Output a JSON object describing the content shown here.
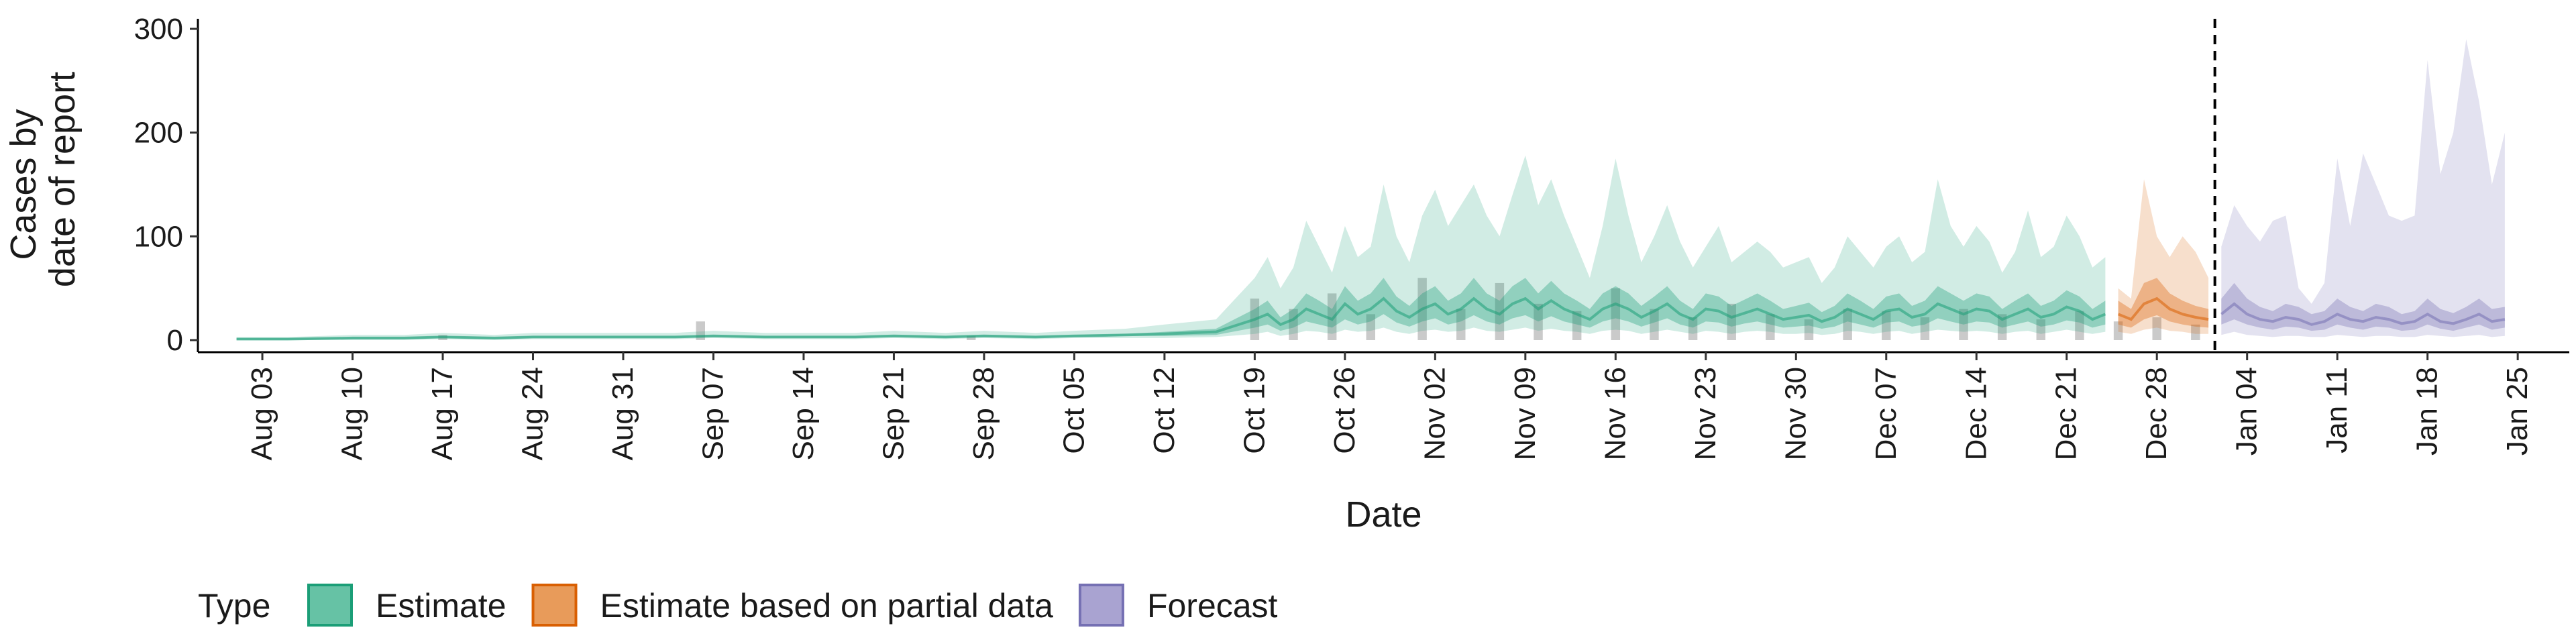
{
  "chart_data": {
    "type": "area",
    "title": "",
    "xlabel": "Date",
    "ylabel": [
      "Cases by",
      "date of report"
    ],
    "ylim": [
      0,
      310
    ],
    "xlim": [
      "2020-07-29",
      "2021-01-29"
    ],
    "y_ticks": [
      0,
      100,
      200,
      300
    ],
    "x_ticks": [
      {
        "date": "2020-08-03",
        "label": "Aug 03"
      },
      {
        "date": "2020-08-10",
        "label": "Aug 10"
      },
      {
        "date": "2020-08-17",
        "label": "Aug 17"
      },
      {
        "date": "2020-08-24",
        "label": "Aug 24"
      },
      {
        "date": "2020-08-31",
        "label": "Aug 31"
      },
      {
        "date": "2020-09-07",
        "label": "Sep 07"
      },
      {
        "date": "2020-09-14",
        "label": "Sep 14"
      },
      {
        "date": "2020-09-21",
        "label": "Sep 21"
      },
      {
        "date": "2020-09-28",
        "label": "Sep 28"
      },
      {
        "date": "2020-10-05",
        "label": "Oct 05"
      },
      {
        "date": "2020-10-12",
        "label": "Oct 12"
      },
      {
        "date": "2020-10-19",
        "label": "Oct 19"
      },
      {
        "date": "2020-10-26",
        "label": "Oct 26"
      },
      {
        "date": "2020-11-02",
        "label": "Nov 02"
      },
      {
        "date": "2020-11-09",
        "label": "Nov 09"
      },
      {
        "date": "2020-11-16",
        "label": "Nov 16"
      },
      {
        "date": "2020-11-23",
        "label": "Nov 23"
      },
      {
        "date": "2020-11-30",
        "label": "Nov 30"
      },
      {
        "date": "2020-12-07",
        "label": "Dec 07"
      },
      {
        "date": "2020-12-14",
        "label": "Dec 14"
      },
      {
        "date": "2020-12-21",
        "label": "Dec 21"
      },
      {
        "date": "2020-12-28",
        "label": "Dec 28"
      },
      {
        "date": "2021-01-04",
        "label": "Jan 04"
      },
      {
        "date": "2021-01-11",
        "label": "Jan 11"
      },
      {
        "date": "2021-01-18",
        "label": "Jan 18"
      },
      {
        "date": "2021-01-25",
        "label": "Jan 25"
      }
    ],
    "forecast_start": "2021-01-01",
    "grid": false,
    "legend": {
      "position": "bottom-left",
      "title": "Type",
      "entries": [
        {
          "label": "Estimate",
          "fill": "#66C2A5",
          "stroke": "#1B9E77"
        },
        {
          "label": "Estimate based on partial data",
          "fill": "#E89B5A",
          "stroke": "#D95F02"
        },
        {
          "label": "Forecast",
          "fill": "#A9A3D1",
          "stroke": "#7570B3"
        }
      ]
    },
    "colors": {
      "Estimate": "#1B9E77",
      "Estimate based on partial data": "#D95F02",
      "Forecast": "#7570B3",
      "reported_cases": "#9E9E9E"
    },
    "series": [
      {
        "name": "Estimate",
        "dates": [
          "2020-08-01",
          "2020-08-05",
          "2020-08-10",
          "2020-08-14",
          "2020-08-17",
          "2020-08-21",
          "2020-08-24",
          "2020-08-28",
          "2020-08-31",
          "2020-09-04",
          "2020-09-07",
          "2020-09-11",
          "2020-09-14",
          "2020-09-18",
          "2020-09-21",
          "2020-09-25",
          "2020-09-28",
          "2020-10-02",
          "2020-10-05",
          "2020-10-09",
          "2020-10-12",
          "2020-10-16",
          "2020-10-19",
          "2020-10-20",
          "2020-10-21",
          "2020-10-22",
          "2020-10-23",
          "2020-10-24",
          "2020-10-25",
          "2020-10-26",
          "2020-10-27",
          "2020-10-28",
          "2020-10-29",
          "2020-10-30",
          "2020-10-31",
          "2020-11-01",
          "2020-11-02",
          "2020-11-03",
          "2020-11-04",
          "2020-11-05",
          "2020-11-06",
          "2020-11-07",
          "2020-11-08",
          "2020-11-09",
          "2020-11-10",
          "2020-11-11",
          "2020-11-12",
          "2020-11-13",
          "2020-11-14",
          "2020-11-15",
          "2020-11-16",
          "2020-11-17",
          "2020-11-18",
          "2020-11-19",
          "2020-11-20",
          "2020-11-21",
          "2020-11-22",
          "2020-11-23",
          "2020-11-24",
          "2020-11-25",
          "2020-11-26",
          "2020-11-27",
          "2020-11-28",
          "2020-11-29",
          "2020-11-30",
          "2020-12-01",
          "2020-12-02",
          "2020-12-03",
          "2020-12-04",
          "2020-12-05",
          "2020-12-06",
          "2020-12-07",
          "2020-12-08",
          "2020-12-09",
          "2020-12-10",
          "2020-12-11",
          "2020-12-12",
          "2020-12-13",
          "2020-12-14",
          "2020-12-15",
          "2020-12-16",
          "2020-12-17",
          "2020-12-18",
          "2020-12-19",
          "2020-12-20",
          "2020-12-21",
          "2020-12-22",
          "2020-12-23",
          "2020-12-24"
        ],
        "median": [
          1,
          1,
          2,
          2,
          3,
          2,
          3,
          3,
          3,
          3,
          4,
          3,
          3,
          3,
          4,
          3,
          4,
          3,
          4,
          5,
          6,
          8,
          20,
          25,
          15,
          20,
          30,
          25,
          20,
          35,
          25,
          30,
          40,
          28,
          22,
          30,
          35,
          25,
          30,
          40,
          30,
          25,
          35,
          40,
          30,
          38,
          30,
          25,
          20,
          30,
          35,
          30,
          22,
          28,
          35,
          25,
          20,
          30,
          28,
          22,
          26,
          30,
          25,
          20,
          22,
          24,
          18,
          22,
          30,
          25,
          20,
          28,
          30,
          22,
          25,
          35,
          30,
          25,
          30,
          28,
          20,
          25,
          30,
          22,
          25,
          32,
          28,
          20,
          25
        ],
        "lower_50": [
          0,
          0,
          1,
          1,
          2,
          1,
          2,
          2,
          2,
          2,
          3,
          2,
          2,
          2,
          3,
          2,
          3,
          2,
          3,
          4,
          4,
          5,
          12,
          15,
          9,
          12,
          18,
          15,
          12,
          20,
          15,
          18,
          25,
          17,
          13,
          18,
          21,
          15,
          18,
          24,
          18,
          15,
          21,
          24,
          18,
          23,
          18,
          15,
          12,
          18,
          21,
          18,
          13,
          17,
          21,
          15,
          12,
          18,
          17,
          13,
          16,
          18,
          15,
          12,
          13,
          14,
          11,
          13,
          18,
          15,
          12,
          17,
          18,
          13,
          15,
          21,
          18,
          15,
          18,
          17,
          12,
          15,
          18,
          13,
          15,
          19,
          17,
          12,
          15
        ],
        "upper_50": [
          2,
          2,
          3,
          3,
          4,
          3,
          4,
          4,
          4,
          4,
          5,
          4,
          4,
          4,
          5,
          4,
          5,
          4,
          5,
          6,
          8,
          11,
          30,
          38,
          22,
          30,
          45,
          38,
          30,
          52,
          38,
          45,
          60,
          42,
          33,
          45,
          52,
          38,
          45,
          60,
          45,
          38,
          52,
          60,
          45,
          57,
          45,
          38,
          30,
          45,
          52,
          45,
          33,
          42,
          52,
          38,
          30,
          45,
          42,
          33,
          39,
          45,
          38,
          30,
          33,
          36,
          27,
          33,
          45,
          38,
          30,
          42,
          45,
          33,
          38,
          52,
          45,
          38,
          45,
          42,
          30,
          38,
          45,
          33,
          38,
          48,
          42,
          30,
          38
        ],
        "lower_90": [
          0,
          0,
          0,
          0,
          1,
          0,
          1,
          1,
          1,
          1,
          2,
          1,
          1,
          1,
          2,
          1,
          2,
          1,
          2,
          2,
          2,
          3,
          6,
          8,
          4,
          6,
          9,
          8,
          6,
          10,
          8,
          9,
          12,
          8,
          6,
          9,
          10,
          8,
          9,
          12,
          9,
          8,
          10,
          12,
          9,
          11,
          9,
          8,
          6,
          9,
          10,
          9,
          6,
          8,
          10,
          8,
          6,
          9,
          8,
          6,
          8,
          9,
          8,
          6,
          6,
          7,
          5,
          6,
          9,
          8,
          6,
          8,
          9,
          6,
          8,
          10,
          9,
          8,
          9,
          8,
          6,
          8,
          9,
          6,
          8,
          10,
          8,
          6,
          8
        ],
        "upper_90": [
          3,
          3,
          5,
          5,
          7,
          5,
          7,
          7,
          7,
          7,
          9,
          7,
          7,
          7,
          9,
          7,
          9,
          7,
          9,
          11,
          15,
          20,
          60,
          80,
          50,
          70,
          115,
          90,
          65,
          110,
          80,
          90,
          150,
          100,
          75,
          120,
          145,
          110,
          130,
          150,
          120,
          100,
          140,
          178,
          130,
          155,
          120,
          90,
          60,
          110,
          175,
          120,
          75,
          100,
          130,
          95,
          70,
          90,
          110,
          75,
          85,
          95,
          85,
          70,
          75,
          80,
          55,
          70,
          100,
          85,
          70,
          90,
          100,
          75,
          85,
          155,
          110,
          90,
          110,
          95,
          65,
          85,
          125,
          80,
          90,
          120,
          100,
          70,
          80
        ]
      },
      {
        "name": "Estimate based on partial data",
        "dates": [
          "2020-12-25",
          "2020-12-26",
          "2020-12-27",
          "2020-12-28",
          "2020-12-29",
          "2020-12-30",
          "2020-12-31",
          "2021-01-01"
        ],
        "median": [
          25,
          20,
          35,
          40,
          30,
          25,
          22,
          20
        ],
        "lower_50": [
          15,
          12,
          20,
          24,
          18,
          15,
          13,
          12
        ],
        "upper_50": [
          38,
          30,
          55,
          60,
          45,
          38,
          33,
          30
        ],
        "lower_90": [
          8,
          6,
          10,
          12,
          9,
          8,
          6,
          6
        ],
        "upper_90": [
          50,
          40,
          155,
          100,
          80,
          100,
          85,
          60
        ]
      },
      {
        "name": "Forecast",
        "dates": [
          "2021-01-02",
          "2021-01-03",
          "2021-01-04",
          "2021-01-05",
          "2021-01-06",
          "2021-01-07",
          "2021-01-08",
          "2021-01-09",
          "2021-01-10",
          "2021-01-11",
          "2021-01-12",
          "2021-01-13",
          "2021-01-14",
          "2021-01-15",
          "2021-01-16",
          "2021-01-17",
          "2021-01-18",
          "2021-01-19",
          "2021-01-20",
          "2021-01-21",
          "2021-01-22",
          "2021-01-23",
          "2021-01-24"
        ],
        "median": [
          25,
          35,
          25,
          20,
          18,
          22,
          20,
          15,
          18,
          25,
          20,
          18,
          22,
          20,
          16,
          18,
          25,
          18,
          16,
          20,
          25,
          18,
          20
        ],
        "lower_50": [
          15,
          20,
          15,
          12,
          10,
          13,
          12,
          9,
          10,
          15,
          12,
          10,
          13,
          12,
          9,
          10,
          15,
          11,
          9,
          12,
          15,
          10,
          12
        ],
        "upper_50": [
          40,
          55,
          40,
          32,
          28,
          35,
          32,
          25,
          28,
          40,
          32,
          28,
          35,
          32,
          25,
          28,
          40,
          30,
          26,
          32,
          40,
          30,
          32
        ],
        "lower_90": [
          5,
          8,
          5,
          4,
          3,
          4,
          4,
          3,
          3,
          5,
          4,
          3,
          4,
          4,
          3,
          3,
          5,
          4,
          3,
          4,
          5,
          3,
          4
        ],
        "upper_90": [
          90,
          130,
          110,
          95,
          115,
          120,
          50,
          35,
          55,
          175,
          110,
          180,
          150,
          120,
          115,
          120,
          270,
          160,
          200,
          290,
          230,
          150,
          200
        ]
      }
    ],
    "reported_cases": {
      "dates": [
        "2020-08-17",
        "2020-09-06",
        "2020-09-27",
        "2020-10-19",
        "2020-10-22",
        "2020-10-25",
        "2020-10-28",
        "2020-11-01",
        "2020-11-04",
        "2020-11-07",
        "2020-11-10",
        "2020-11-13",
        "2020-11-16",
        "2020-11-19",
        "2020-11-22",
        "2020-11-25",
        "2020-11-28",
        "2020-12-01",
        "2020-12-04",
        "2020-12-07",
        "2020-12-10",
        "2020-12-13",
        "2020-12-16",
        "2020-12-19",
        "2020-12-22",
        "2020-12-25",
        "2020-12-28",
        "2020-12-31"
      ],
      "values": [
        5,
        18,
        4,
        40,
        30,
        45,
        25,
        60,
        30,
        55,
        35,
        28,
        50,
        30,
        22,
        35,
        25,
        20,
        30,
        28,
        22,
        30,
        25,
        20,
        28,
        18,
        22,
        15
      ]
    }
  }
}
